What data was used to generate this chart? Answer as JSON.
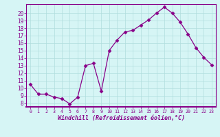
{
  "x": [
    0,
    1,
    2,
    3,
    4,
    5,
    6,
    7,
    8,
    9,
    10,
    11,
    12,
    13,
    14,
    15,
    16,
    17,
    18,
    19,
    20,
    21,
    22,
    23
  ],
  "y": [
    10.5,
    9.2,
    9.2,
    8.8,
    8.6,
    7.9,
    8.8,
    13.0,
    13.3,
    9.6,
    15.0,
    16.4,
    17.5,
    17.7,
    18.4,
    19.1,
    20.0,
    20.8,
    20.0,
    18.8,
    17.2,
    15.4,
    14.1,
    13.1
  ],
  "line_color": "#880088",
  "marker": "D",
  "marker_size": 2.5,
  "bg_color": "#d6f5f5",
  "grid_color": "#b0dede",
  "xlabel": "Windchill (Refroidissement éolien,°C)",
  "ylabel_ticks": [
    8,
    9,
    10,
    11,
    12,
    13,
    14,
    15,
    16,
    17,
    18,
    19,
    20
  ],
  "ylim": [
    7.5,
    21.2
  ],
  "xlim": [
    -0.5,
    23.5
  ]
}
